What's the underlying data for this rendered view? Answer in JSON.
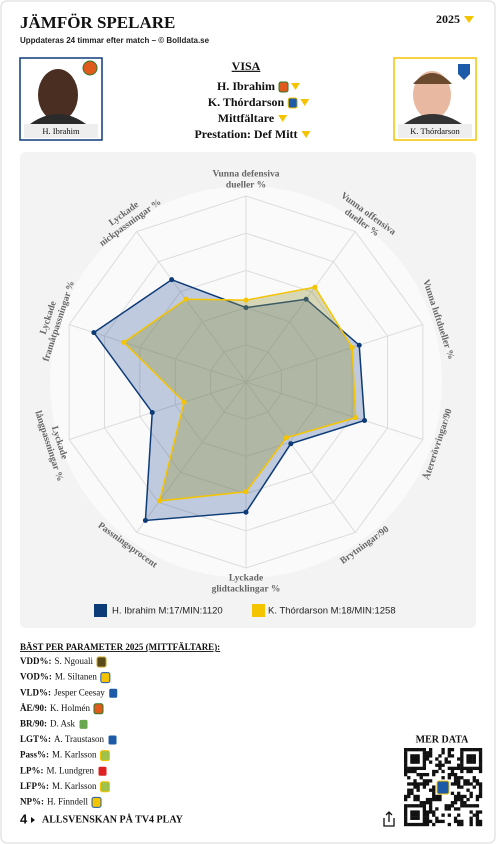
{
  "header": {
    "title": "JÄMFÖR SPELARE",
    "subtitle": "Uppdateras 24 timmar efter match – © Bolldata.se",
    "season": "2025"
  },
  "players": [
    {
      "name": "H. Ibrahim"
    },
    {
      "name": "K. Thórdarson"
    }
  ],
  "filters": {
    "heading": "VISA",
    "items": [
      "H. Ibrahim",
      "K. Thórdarson",
      "Mittfältare",
      "Prestation: Def Mitt"
    ]
  },
  "chart_data": {
    "type": "radar",
    "categories": [
      [
        "Vunna defensiva",
        "dueller %"
      ],
      [
        "Vunna offensiva",
        "dueller %"
      ],
      [
        "Vunna luftdueller %"
      ],
      [
        "Återerövringar/90"
      ],
      [
        "Brytningar/90"
      ],
      [
        "Lyckade",
        "glidtacklingar %"
      ],
      [
        "Passningsprocent"
      ],
      [
        "Lyckade",
        "långpassningar %"
      ],
      [
        "Lyckade",
        "framåtpassningar %"
      ],
      [
        "Lyckade",
        "nickpassningar %"
      ]
    ],
    "rlim": [
      0,
      100
    ],
    "series": [
      {
        "name": "H. Ibrahim M:17/MIN:1120",
        "color": "#0d3b78",
        "values": [
          40,
          55,
          64,
          67,
          41,
          70,
          92,
          53,
          86,
          68
        ]
      },
      {
        "name": "K. Thórdarson M:18/MIN:1258",
        "color": "#f5c400",
        "values": [
          44,
          63,
          60,
          62,
          37,
          59,
          79,
          35,
          69,
          55
        ]
      }
    ]
  },
  "best": {
    "heading": "BÄST PER PARAMETER 2025 (MITTFÄLTARE):",
    "rows": [
      {
        "param": "VDD%:",
        "player": "S. Ngouali"
      },
      {
        "param": "VOD%:",
        "player": "M. Siltanen"
      },
      {
        "param": "VLD%:",
        "player": "Jesper Ceesay"
      },
      {
        "param": "ÅE/90:",
        "player": "K. Holmén"
      },
      {
        "param": "BR/90:",
        "player": "D. Ask"
      },
      {
        "param": "LGT%:",
        "player": "A. Traustason"
      },
      {
        "param": "Pass%:",
        "player": "M. Karlsson"
      },
      {
        "param": "LP%:",
        "player": "M. Lundgren"
      },
      {
        "param": "LFP%:",
        "player": "M. Karlsson"
      },
      {
        "param": "NP%:",
        "player": "H. Finndell"
      }
    ]
  },
  "footer": {
    "more": "MER DATA",
    "tv": "ALLSVENSKAN PÅ TV4 PLAY",
    "logo": "4"
  }
}
